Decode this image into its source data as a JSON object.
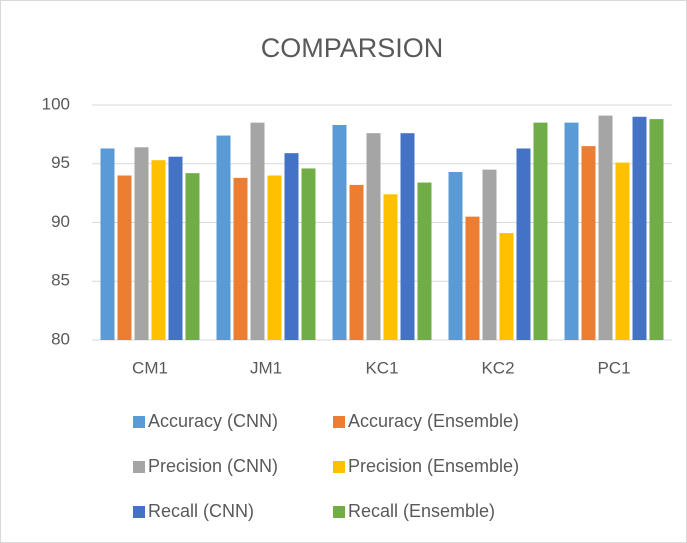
{
  "chart_data": {
    "type": "bar",
    "title": "COMPARSION",
    "categories": [
      "CM1",
      "JM1",
      "KC1",
      "KC2",
      "PC1"
    ],
    "series": [
      {
        "name": "Accuracy (CNN)",
        "color": "#5b9bd5",
        "values": [
          96.3,
          97.4,
          98.3,
          94.3,
          98.5
        ]
      },
      {
        "name": "Accuracy (Ensemble)",
        "color": "#ed7d31",
        "values": [
          94.0,
          93.8,
          93.2,
          90.5,
          96.5
        ]
      },
      {
        "name": "Precision (CNN)",
        "color": "#a5a5a5",
        "values": [
          96.4,
          98.5,
          97.6,
          94.5,
          99.1
        ]
      },
      {
        "name": "Precision (Ensemble)",
        "color": "#ffc000",
        "values": [
          95.3,
          94.0,
          92.4,
          89.1,
          95.1
        ]
      },
      {
        "name": "Recall (CNN)",
        "color": "#4472c4",
        "values": [
          95.6,
          95.9,
          97.6,
          96.3,
          99.0
        ]
      },
      {
        "name": "Recall (Ensemble)",
        "color": "#70ad47",
        "values": [
          94.2,
          94.6,
          93.4,
          98.5,
          98.8
        ]
      }
    ],
    "ylim": [
      80,
      100
    ],
    "yticks": [
      80,
      85,
      90,
      95,
      100
    ],
    "grid": true
  }
}
